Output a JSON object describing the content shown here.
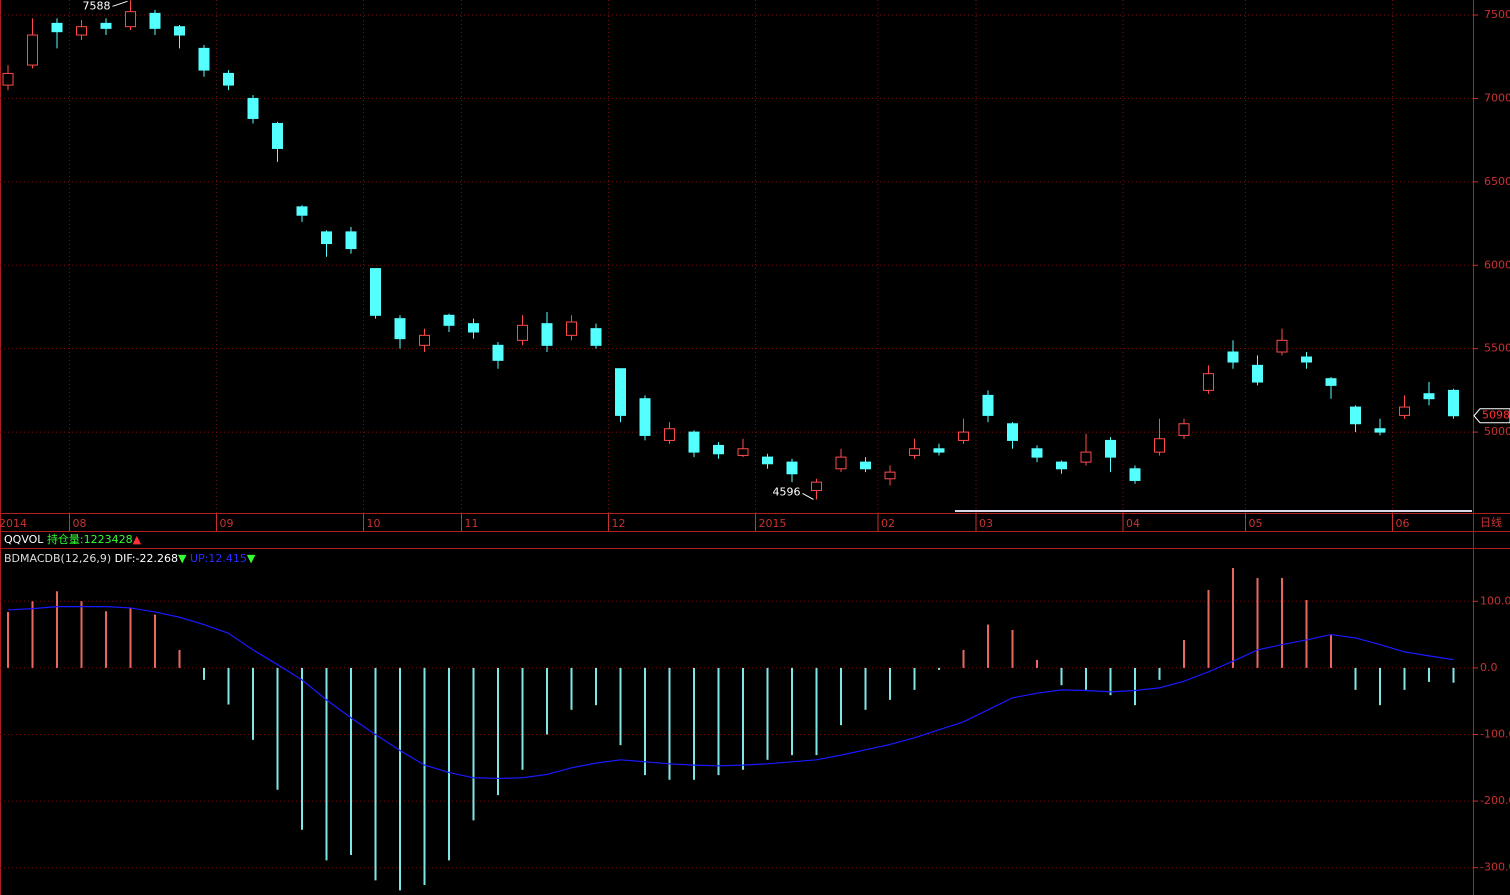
{
  "volume_header": {
    "name": "QQVOL",
    "open_interest": "持仓量:1223428",
    "trend": "▲"
  },
  "chart_data": [
    {
      "type": "candlestick",
      "period": "日线",
      "categories": [
        "2014",
        null,
        null,
        "08",
        null,
        null,
        null,
        null,
        null,
        "09",
        null,
        null,
        null,
        null,
        null,
        "10",
        null,
        null,
        null,
        "11",
        null,
        null,
        null,
        null,
        null,
        "12",
        null,
        null,
        null,
        null,
        null,
        "2015",
        null,
        null,
        null,
        null,
        "02",
        null,
        null,
        null,
        "03",
        null,
        null,
        null,
        null,
        null,
        "04",
        null,
        null,
        null,
        null,
        "05",
        null,
        null,
        null,
        null,
        null,
        "06",
        null,
        null
      ],
      "open": [
        7080,
        7200,
        7450,
        7380,
        7450,
        7430,
        7510,
        7430,
        7300,
        7150,
        7000,
        6850,
        6350,
        6200,
        6200,
        5980,
        5680,
        5520,
        5700,
        5650,
        5520,
        5550,
        5650,
        5580,
        5620,
        5380,
        5200,
        4950,
        5000,
        4920,
        4860,
        4850,
        4820,
        4650,
        4780,
        4820,
        4720,
        4860,
        4900,
        4950,
        5220,
        5050,
        4900,
        4820,
        4820,
        4950,
        4780,
        4880,
        4980,
        5250,
        5480,
        5400,
        5480,
        5450,
        5320,
        5150,
        5020,
        5100,
        5230,
        5250
      ],
      "high": [
        7200,
        7480,
        7480,
        7470,
        7480,
        7588,
        7530,
        7440,
        7320,
        7170,
        7020,
        6860,
        6360,
        6210,
        6230,
        5980,
        5700,
        5620,
        5710,
        5680,
        5540,
        5700,
        5720,
        5700,
        5650,
        5380,
        5220,
        5060,
        5010,
        4940,
        4960,
        4870,
        4840,
        4720,
        4900,
        4850,
        4800,
        4960,
        4930,
        5080,
        5250,
        5060,
        4920,
        4830,
        4990,
        4970,
        4800,
        5080,
        5080,
        5400,
        5550,
        5460,
        5620,
        5480,
        5330,
        5160,
        5080,
        5220,
        5300,
        5260
      ],
      "low": [
        7050,
        7180,
        7300,
        7350,
        7380,
        7410,
        7380,
        7300,
        7130,
        7050,
        6850,
        6620,
        6260,
        6050,
        6070,
        5680,
        5500,
        5480,
        5600,
        5560,
        5380,
        5520,
        5480,
        5550,
        5500,
        5060,
        4950,
        4930,
        4850,
        4840,
        4850,
        4780,
        4700,
        4596,
        4760,
        4760,
        4680,
        4840,
        4860,
        4930,
        5060,
        4900,
        4820,
        4750,
        4800,
        4760,
        4690,
        4860,
        4960,
        5230,
        5380,
        5280,
        5460,
        5380,
        5200,
        5000,
        4980,
        5080,
        5160,
        5080
      ],
      "close": [
        7150,
        7380,
        7400,
        7430,
        7420,
        7520,
        7420,
        7380,
        7170,
        7080,
        6880,
        6700,
        6300,
        6130,
        6100,
        5700,
        5560,
        5580,
        5640,
        5600,
        5430,
        5640,
        5520,
        5660,
        5520,
        5100,
        4980,
        5020,
        4880,
        4870,
        4900,
        4810,
        4750,
        4700,
        4850,
        4780,
        4760,
        4900,
        4880,
        5000,
        5100,
        4950,
        4850,
        4780,
        4880,
        4850,
        4710,
        4960,
        5050,
        5350,
        5420,
        5300,
        5550,
        5420,
        5280,
        5050,
        5000,
        5150,
        5200,
        5098
      ],
      "up_color": "#ff4a4a",
      "down_color": "#54ffff",
      "ylim": [
        4515,
        7590
      ],
      "yticks": [
        5000,
        5500,
        6000,
        6500,
        7000,
        7500
      ],
      "grid": true
    },
    {
      "type": "macd",
      "title": "BDMACDB(12,26,9)",
      "series": [
        {
          "kind": "histogram",
          "label": "DIF:-22.268",
          "trend": "▼",
          "pos_color": "#e8675f",
          "neg_color": "#7fe6e6",
          "label_color": "#ffffff",
          "values": [
            84,
            100,
            115,
            100,
            85,
            90,
            80,
            27,
            -18,
            -55,
            -108,
            -183,
            -243,
            -289,
            -281,
            -319,
            -334,
            -326,
            -289,
            -229,
            -191,
            -153,
            -100,
            -63,
            -56,
            -116,
            -161,
            -168,
            -168,
            -161,
            -153,
            -138,
            -131,
            -131,
            -86,
            -63,
            -48,
            -33,
            -3,
            27,
            65,
            57,
            12,
            -26,
            -33,
            -41,
            -56,
            -18,
            42,
            117,
            150,
            135,
            135,
            102,
            50,
            -33,
            -56,
            -33,
            -21,
            -22.268
          ]
        },
        {
          "kind": "line",
          "label": "UP:12.415",
          "trend": "▼",
          "color": "#1a1aff",
          "label_color": "#2b2bff",
          "values": [
            87,
            89,
            92,
            92,
            92,
            90,
            84,
            76,
            65,
            52,
            27,
            5,
            -18,
            -48,
            -75,
            -100,
            -124,
            -146,
            -157,
            -165,
            -166,
            -165,
            -160,
            -150,
            -143,
            -138,
            -141,
            -144,
            -146,
            -147,
            -146,
            -144,
            -141,
            -138,
            -131,
            -123,
            -115,
            -105,
            -93,
            -81,
            -63,
            -45,
            -38,
            -33,
            -34,
            -36,
            -34,
            -30,
            -20,
            -6,
            10,
            27,
            35,
            42,
            50,
            45,
            35,
            24,
            18,
            12.415
          ]
        }
      ],
      "ylim": [
        -341,
        180
      ],
      "yticks": [
        {
          "value": 100,
          "label": "100.0"
        },
        {
          "value": 0,
          "label": "0.0"
        },
        {
          "value": -100,
          "label": "-100.0"
        },
        {
          "value": -200,
          "label": "-200.0"
        },
        {
          "value": -300,
          "label": "-300.0"
        }
      ]
    }
  ]
}
